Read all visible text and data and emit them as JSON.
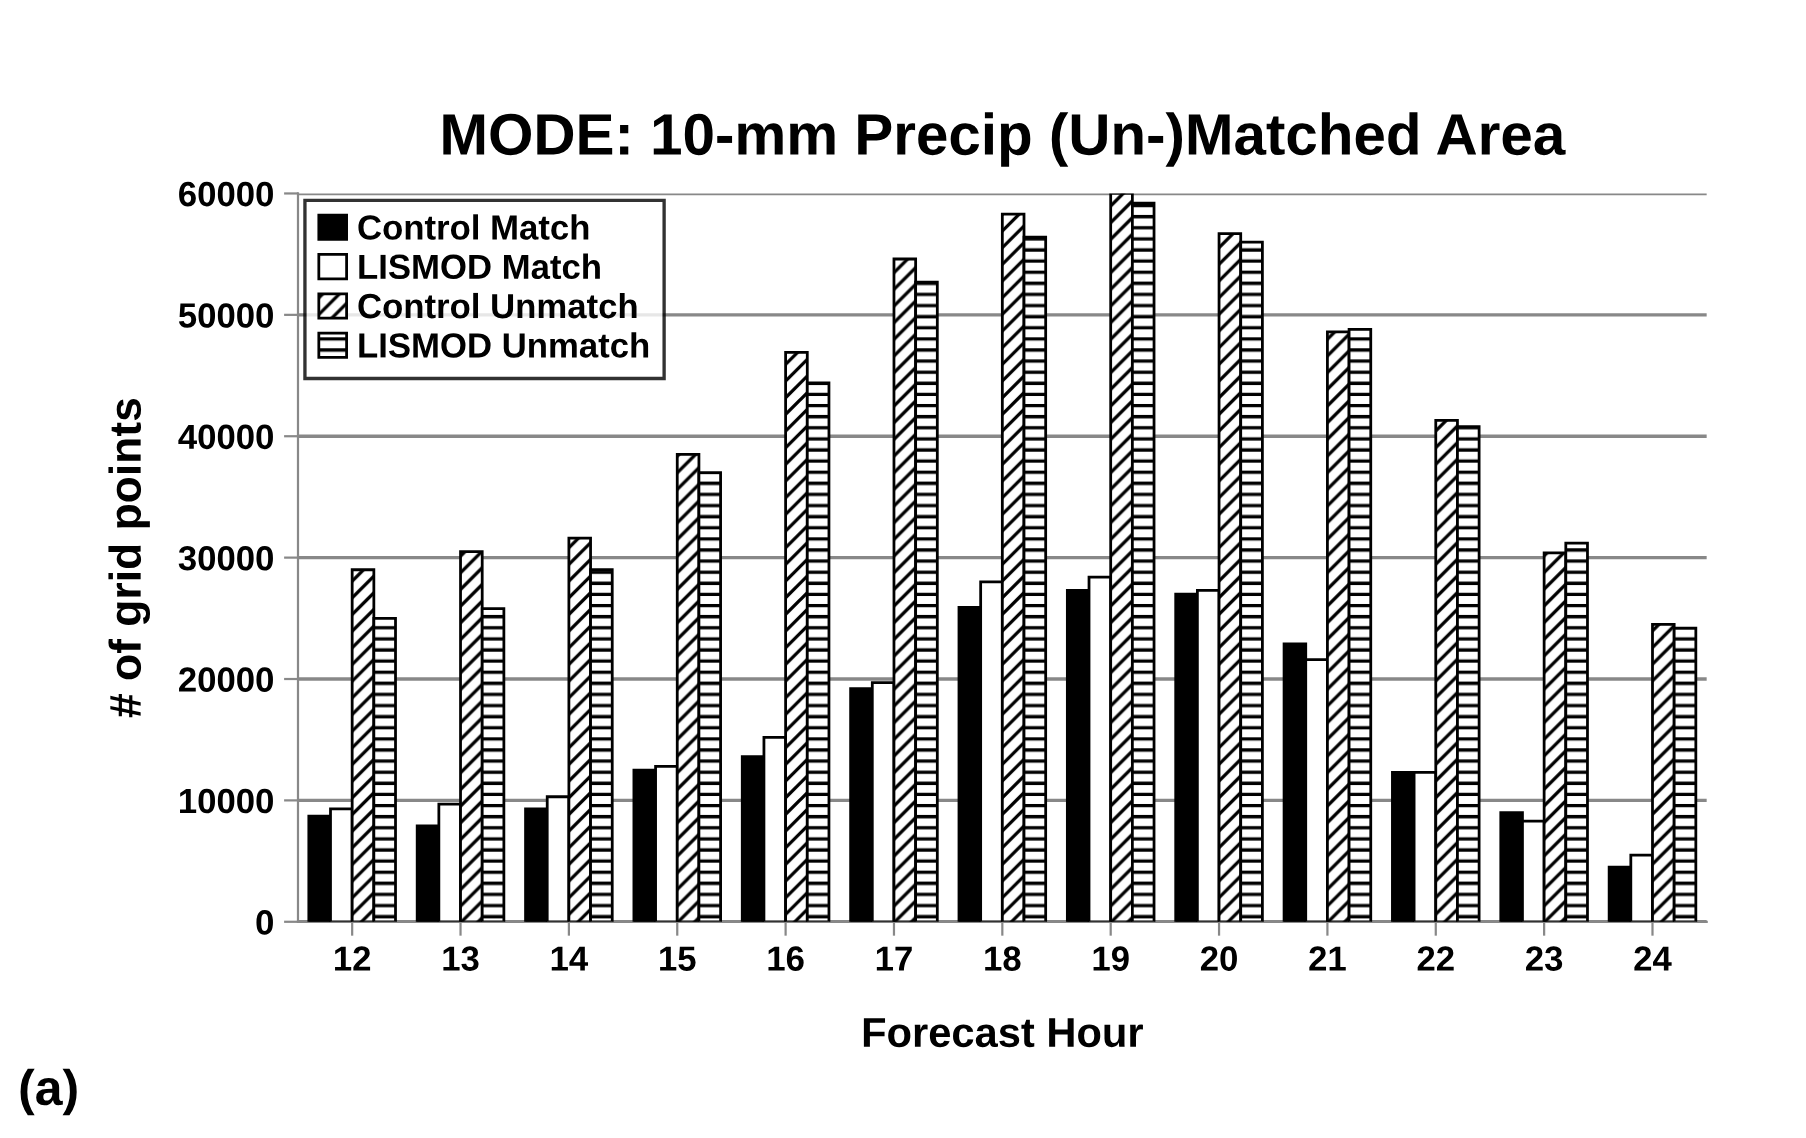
{
  "chart_data": {
    "type": "bar",
    "title": "MODE: 10-mm Precip (Un-)Matched Area",
    "xlabel": "Forecast Hour",
    "ylabel": "# of grid points",
    "categories": [
      "12",
      "13",
      "14",
      "15",
      "16",
      "17",
      "18",
      "19",
      "20",
      "21",
      "22",
      "23",
      "24"
    ],
    "series": [
      {
        "name": "Control Match",
        "color": "#000000",
        "values": [
          8700,
          7900,
          9300,
          12500,
          13600,
          19200,
          25900,
          27300,
          27000,
          22900,
          12300,
          9000,
          4500
        ]
      },
      {
        "name": "LISMOD Match",
        "color": "#ffffff",
        "values": [
          9300,
          9700,
          10300,
          12800,
          15200,
          19700,
          28000,
          28400,
          27300,
          21600,
          12300,
          8300,
          5500
        ]
      },
      {
        "name": "Control Unmatch",
        "color": "#000000",
        "values": [
          29000,
          30500,
          31600,
          38500,
          46900,
          54600,
          58300,
          60000,
          56700,
          48600,
          41300,
          30400,
          24500
        ]
      },
      {
        "name": "LISMOD Unmatch",
        "color": "#000000",
        "values": [
          25000,
          25800,
          29000,
          37000,
          44400,
          52700,
          56400,
          59200,
          56000,
          48800,
          40800,
          31200,
          24200
        ]
      }
    ],
    "ylim": [
      0,
      60000
    ],
    "yticks": [
      0,
      10000,
      20000,
      30000,
      40000,
      50000,
      60000
    ],
    "grid": "y",
    "legend": "top left",
    "annotations": [
      "(a)"
    ]
  }
}
